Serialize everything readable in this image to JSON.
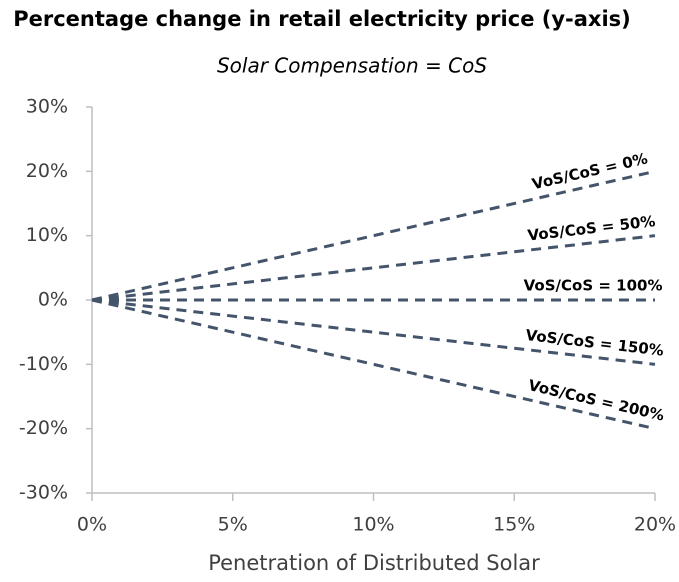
{
  "chart_data": {
    "type": "line",
    "title": "Percentage change in retail electricity price (y-axis)",
    "subtitle": "Solar Compensation = CoS",
    "x_label": "Penetration of Distributed Solar",
    "x": [
      0,
      20
    ],
    "series": [
      {
        "name": "VoS/CoS = 0%",
        "color": "#44546a",
        "values": [
          0,
          20
        ]
      },
      {
        "name": "VoS/CoS = 50%",
        "color": "#44546a",
        "values": [
          0,
          10
        ]
      },
      {
        "name": "VoS/CoS = 100%",
        "color": "#44546a",
        "values": [
          0,
          0
        ]
      },
      {
        "name": "VoS/CoS = 150%",
        "color": "#44546a",
        "values": [
          0,
          -10
        ]
      },
      {
        "name": "VoS/CoS = 200%",
        "color": "#44546a",
        "values": [
          0,
          -20
        ]
      }
    ],
    "xlim": [
      0,
      20
    ],
    "xticks": [
      {
        "value": 0,
        "label": "0%"
      },
      {
        "value": 5,
        "label": "5%"
      },
      {
        "value": 10,
        "label": "10%"
      },
      {
        "value": 15,
        "label": "15%"
      },
      {
        "value": 20,
        "label": "20%"
      }
    ],
    "ylim": [
      -30,
      30
    ],
    "yticks": [
      {
        "value": -30,
        "label": "-30%"
      },
      {
        "value": -20,
        "label": "-20%"
      },
      {
        "value": -10,
        "label": "-10%"
      },
      {
        "value": 0,
        "label": "0%"
      },
      {
        "value": 10,
        "label": "10%"
      },
      {
        "value": 20,
        "label": "20%"
      },
      {
        "value": 30,
        "label": "30%"
      }
    ],
    "grid": false,
    "line_style": "dashed"
  }
}
